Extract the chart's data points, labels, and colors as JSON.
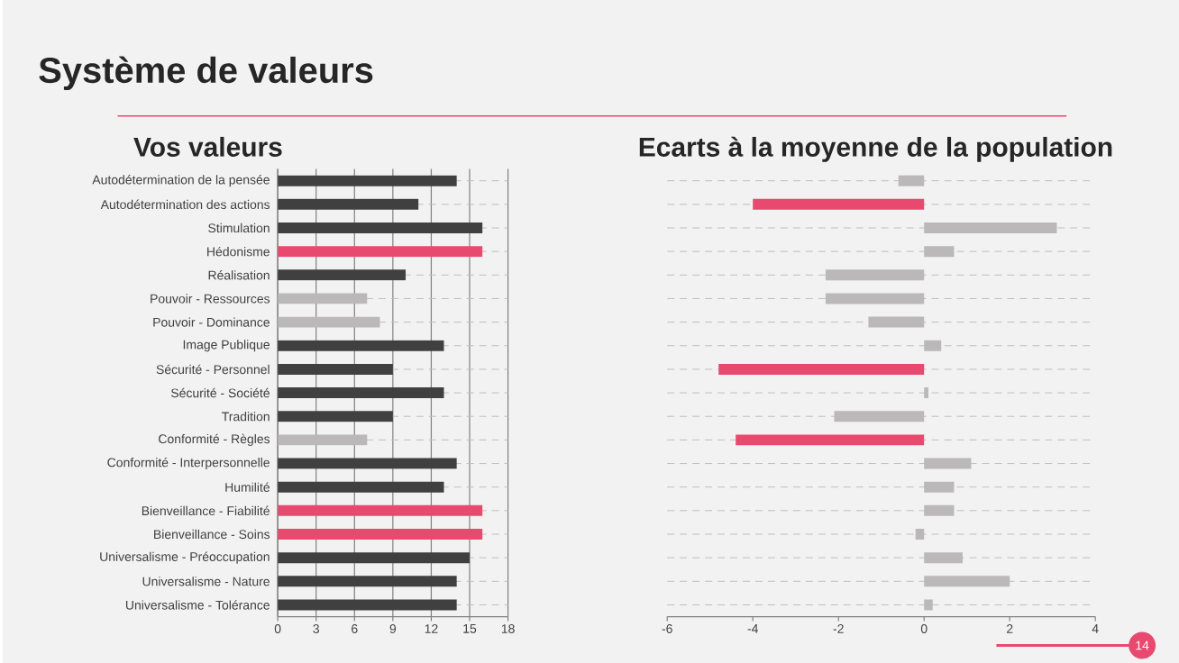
{
  "chart_data": [
    {
      "type": "bar",
      "orientation": "horizontal",
      "title": "Système de valeurs",
      "subtitle": "Vos valeurs",
      "categories": [
        "Autodétermination de la pensée",
        "Autodétermination des actions",
        "Stimulation",
        "Hédonisme",
        "Réalisation",
        "Pouvoir - Ressources",
        "Pouvoir - Dominance",
        "Image Publique",
        "Sécurité - Personnel",
        "Sécurité - Société",
        "Tradition",
        "Conformité - Règles",
        "Conformité - Interpersonnelle",
        "Humilité",
        "Bienveillance - Fiabilité",
        "Bienveillance - Soins",
        "Universalisme - Préoccupation",
        "Universalisme - Nature",
        "Universalisme - Tolérance"
      ],
      "values": [
        14,
        11,
        16,
        16,
        10,
        7,
        8,
        13,
        9,
        13,
        9,
        7,
        14,
        13,
        16,
        16,
        15,
        14,
        14
      ],
      "colors": [
        "#404040",
        "#404040",
        "#404040",
        "#e84a6f",
        "#404040",
        "#bab8b8",
        "#bab8b8",
        "#404040",
        "#404040",
        "#404040",
        "#404040",
        "#bab8b8",
        "#404040",
        "#404040",
        "#e84a6f",
        "#e84a6f",
        "#404040",
        "#404040",
        "#404040"
      ],
      "xlim": [
        0,
        18
      ],
      "xticks": [
        0,
        3,
        6,
        9,
        12,
        15,
        18
      ],
      "grid": true
    },
    {
      "type": "bar",
      "orientation": "horizontal",
      "title": "Ecarts à la moyenne de la population",
      "categories": [
        null,
        null,
        null,
        null,
        null,
        null,
        null,
        null,
        null,
        null,
        null,
        null,
        null,
        null,
        null,
        null,
        null,
        null,
        null
      ],
      "values": [
        -0.6,
        -4.0,
        3.1,
        0.7,
        -2.3,
        -2.3,
        -1.3,
        0.4,
        -4.8,
        0.1,
        -2.1,
        -4.4,
        1.1,
        0.7,
        0.7,
        -0.2,
        0.9,
        2.0,
        0.2
      ],
      "colors": [
        "#bab8b8",
        "#e84a6f",
        "#bab8b8",
        "#bab8b8",
        "#bab8b8",
        "#bab8b8",
        "#bab8b8",
        "#bab8b8",
        "#e84a6f",
        "#bab8b8",
        "#bab8b8",
        "#e84a6f",
        "#bab8b8",
        "#bab8b8",
        "#bab8b8",
        "#bab8b8",
        "#bab8b8",
        "#bab8b8",
        "#bab8b8"
      ],
      "xlim": [
        -6,
        4
      ],
      "xticks": [
        -6,
        -4,
        -2,
        0,
        2,
        4
      ],
      "grid": "y",
      "tick_labels": "x",
      "annotations": [
        "14"
      ]
    }
  ]
}
